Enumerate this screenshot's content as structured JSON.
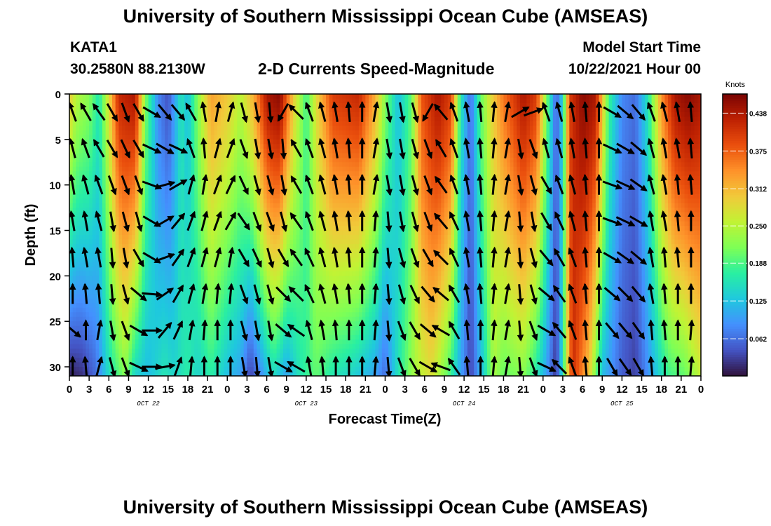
{
  "title": "University of Southern Mississippi Ocean Cube (AMSEAS)",
  "station": {
    "id": "KATA1",
    "coords": "30.2580N  88.2130W"
  },
  "subtitle": "2-D Currents Speed-Magnitude",
  "model_start": {
    "label": "Model Start Time",
    "value": "10/22/2021 Hour 00"
  },
  "footer_title": "University of Southern Mississippi Ocean Cube (AMSEAS)",
  "colors": {
    "colormap": [
      "#30123b",
      "#4454c4",
      "#4490fe",
      "#1fc8de",
      "#29efa2",
      "#7dff56",
      "#c1f334",
      "#f1ca3a",
      "#fe922a",
      "#ea4f0d",
      "#be2102",
      "#7a0403"
    ]
  },
  "chart_data": {
    "type": "heatmap",
    "xlabel": "Forecast Time(Z)",
    "ylabel": "Depth (ft)",
    "x_range_hours": [
      0,
      96
    ],
    "ylim": [
      0,
      31
    ],
    "y_ticks": [
      "0",
      "5",
      "10",
      "15",
      "20",
      "25",
      "30"
    ],
    "x_tick_labels": [
      "0",
      "3",
      "6",
      "9",
      "12",
      "15",
      "18",
      "21",
      "0",
      "3",
      "6",
      "9",
      "12",
      "15",
      "18",
      "21",
      "0",
      "3",
      "6",
      "9",
      "12",
      "15",
      "18",
      "21",
      "0",
      "3",
      "6",
      "9",
      "12",
      "15",
      "18",
      "21",
      "0"
    ],
    "day_labels": [
      {
        "label": "OCT 22",
        "hour": 12
      },
      {
        "label": "OCT 23",
        "hour": 36
      },
      {
        "label": "OCT 24",
        "hour": 60
      },
      {
        "label": "OCT 25",
        "hour": 84
      }
    ],
    "colorbar": {
      "unit": "Knots",
      "min": 0.0,
      "max": 0.47,
      "ticks": [
        "0.438",
        "0.375",
        "0.312",
        "0.250",
        "0.188",
        "0.125",
        "0.062"
      ]
    },
    "surface_speed_knots": [
      {
        "hour": 0,
        "v": 0.3
      },
      {
        "hour": 1,
        "v": 0.25
      },
      {
        "hour": 3,
        "v": 0.22
      },
      {
        "hour": 4.5,
        "v": 0.16
      },
      {
        "hour": 6,
        "v": 0.28
      },
      {
        "hour": 7.5,
        "v": 0.42
      },
      {
        "hour": 10,
        "v": 0.44
      },
      {
        "hour": 11.5,
        "v": 0.22
      },
      {
        "hour": 13.5,
        "v": 0.08
      },
      {
        "hour": 15,
        "v": 0.04
      },
      {
        "hour": 17,
        "v": 0.16
      },
      {
        "hour": 18,
        "v": 0.12
      },
      {
        "hour": 19.5,
        "v": 0.22
      },
      {
        "hour": 21.5,
        "v": 0.33
      },
      {
        "hour": 24,
        "v": 0.3
      },
      {
        "hour": 26,
        "v": 0.25
      },
      {
        "hour": 28,
        "v": 0.32
      },
      {
        "hour": 30,
        "v": 0.44
      },
      {
        "hour": 32,
        "v": 0.46
      },
      {
        "hour": 34,
        "v": 0.3
      },
      {
        "hour": 36,
        "v": 0.18
      },
      {
        "hour": 37.5,
        "v": 0.28
      },
      {
        "hour": 40,
        "v": 0.4
      },
      {
        "hour": 44,
        "v": 0.42
      },
      {
        "hour": 46.5,
        "v": 0.32
      },
      {
        "hour": 48,
        "v": 0.22
      },
      {
        "hour": 50,
        "v": 0.12
      },
      {
        "hour": 52,
        "v": 0.2
      },
      {
        "hour": 53.5,
        "v": 0.38
      },
      {
        "hour": 56,
        "v": 0.44
      },
      {
        "hour": 58,
        "v": 0.4
      },
      {
        "hour": 59.5,
        "v": 0.16
      },
      {
        "hour": 61,
        "v": 0.06
      },
      {
        "hour": 62.5,
        "v": 0.2
      },
      {
        "hour": 64,
        "v": 0.28
      },
      {
        "hour": 66,
        "v": 0.36
      },
      {
        "hour": 69,
        "v": 0.44
      },
      {
        "hour": 71,
        "v": 0.4
      },
      {
        "hour": 72.5,
        "v": 0.22
      },
      {
        "hour": 74,
        "v": 0.05
      },
      {
        "hour": 75,
        "v": 0.14
      },
      {
        "hour": 76,
        "v": 0.4
      },
      {
        "hour": 78,
        "v": 0.46
      },
      {
        "hour": 80,
        "v": 0.44
      },
      {
        "hour": 82,
        "v": 0.18
      },
      {
        "hour": 84,
        "v": 0.08
      },
      {
        "hour": 86,
        "v": 0.06
      },
      {
        "hour": 88,
        "v": 0.16
      },
      {
        "hour": 90,
        "v": 0.34
      },
      {
        "hour": 92,
        "v": 0.44
      },
      {
        "hour": 94,
        "v": 0.46
      },
      {
        "hour": 96,
        "v": 0.44
      }
    ],
    "deep_speed_knots": [
      {
        "hour": 0,
        "v": 0.01
      },
      {
        "hour": 2,
        "v": 0.02
      },
      {
        "hour": 4,
        "v": 0.06
      },
      {
        "hour": 6,
        "v": 0.15
      },
      {
        "hour": 8.5,
        "v": 0.22
      },
      {
        "hour": 10,
        "v": 0.14
      },
      {
        "hour": 12,
        "v": 0.12
      },
      {
        "hour": 14.5,
        "v": 0.16
      },
      {
        "hour": 16,
        "v": 0.14
      },
      {
        "hour": 18,
        "v": 0.17
      },
      {
        "hour": 19.5,
        "v": 0.14
      },
      {
        "hour": 21.5,
        "v": 0.17
      },
      {
        "hour": 24,
        "v": 0.12
      },
      {
        "hour": 26,
        "v": 0.1
      },
      {
        "hour": 27.5,
        "v": 0.03
      },
      {
        "hour": 29,
        "v": 0.08
      },
      {
        "hour": 31,
        "v": 0.15
      },
      {
        "hour": 33,
        "v": 0.1
      },
      {
        "hour": 35,
        "v": 0.16
      },
      {
        "hour": 37.5,
        "v": 0.2
      },
      {
        "hour": 40,
        "v": 0.16
      },
      {
        "hour": 43,
        "v": 0.14
      },
      {
        "hour": 46.5,
        "v": 0.1
      },
      {
        "hour": 48,
        "v": 0.06
      },
      {
        "hour": 50,
        "v": 0.16
      },
      {
        "hour": 52.5,
        "v": 0.24
      },
      {
        "hour": 55,
        "v": 0.28
      },
      {
        "hour": 57.5,
        "v": 0.2
      },
      {
        "hour": 59.5,
        "v": 0.1
      },
      {
        "hour": 61,
        "v": 0.03
      },
      {
        "hour": 63,
        "v": 0.14
      },
      {
        "hour": 64.5,
        "v": 0.24
      },
      {
        "hour": 66,
        "v": 0.2
      },
      {
        "hour": 69,
        "v": 0.22
      },
      {
        "hour": 71,
        "v": 0.16
      },
      {
        "hour": 72.5,
        "v": 0.1
      },
      {
        "hour": 74,
        "v": 0.02
      },
      {
        "hour": 75,
        "v": 0.16
      },
      {
        "hour": 76.5,
        "v": 0.42
      },
      {
        "hour": 79,
        "v": 0.3
      },
      {
        "hour": 81,
        "v": 0.12
      },
      {
        "hour": 84,
        "v": 0.05
      },
      {
        "hour": 86,
        "v": 0.03
      },
      {
        "hour": 89,
        "v": 0.12
      },
      {
        "hour": 91,
        "v": 0.18
      },
      {
        "hour": 93.5,
        "v": 0.2
      },
      {
        "hour": 96,
        "v": 0.26
      }
    ],
    "vectors": {
      "depth_rows_ft": [
        2,
        6,
        10,
        14,
        18,
        22,
        26,
        30
      ],
      "columns": [
        {
          "hour": 0.5,
          "dirs": [
            -20,
            -15,
            -10,
            -10,
            -5,
            0,
            130,
            0
          ]
        },
        {
          "hour": 2.5,
          "dirs": [
            -30,
            -20,
            -15,
            -10,
            -10,
            -5,
            0,
            -5
          ]
        },
        {
          "hour": 4.5,
          "dirs": [
            -35,
            -30,
            -20,
            -15,
            -10,
            -5,
            10,
            15
          ]
        },
        {
          "hour": 6.5,
          "dirs": [
            150,
            150,
            160,
            170,
            175,
            175,
            170,
            165
          ]
        },
        {
          "hour": 8.5,
          "dirs": [
            160,
            155,
            160,
            165,
            170,
            165,
            160,
            160
          ]
        },
        {
          "hour": 10.5,
          "dirs": [
            150,
            150,
            160,
            165,
            150,
            130,
            120,
            115
          ]
        },
        {
          "hour": 12.5,
          "dirs": [
            120,
            115,
            110,
            120,
            120,
            95,
            90,
            90
          ]
        },
        {
          "hour": 14.5,
          "dirs": [
            140,
            120,
            75,
            60,
            70,
            55,
            40,
            80
          ]
        },
        {
          "hour": 16.5,
          "dirs": [
            140,
            115,
            60,
            40,
            35,
            30,
            25,
            20
          ]
        },
        {
          "hour": 18.5,
          "dirs": [
            -30,
            -20,
            15,
            20,
            20,
            15,
            10,
            5
          ]
        },
        {
          "hour": 20.5,
          "dirs": [
            -10,
            -5,
            10,
            15,
            15,
            10,
            5,
            0
          ]
        },
        {
          "hour": 22.5,
          "dirs": [
            10,
            15,
            20,
            20,
            15,
            5,
            0,
            0
          ]
        },
        {
          "hour": 24.5,
          "dirs": [
            15,
            20,
            25,
            30,
            10,
            5,
            0,
            0
          ]
        },
        {
          "hour": 26.5,
          "dirs": [
            165,
            160,
            155,
            145,
            150,
            160,
            165,
            170
          ]
        },
        {
          "hour": 28.5,
          "dirs": [
            170,
            170,
            165,
            160,
            155,
            165,
            170,
            175
          ]
        },
        {
          "hour": 30.5,
          "dirs": [
            175,
            170,
            165,
            160,
            165,
            165,
            170,
            170
          ]
        },
        {
          "hour": 32.5,
          "dirs": [
            -150,
            175,
            170,
            165,
            150,
            135,
            130,
            120
          ]
        },
        {
          "hour": 34.5,
          "dirs": [
            -45,
            -30,
            -30,
            -35,
            -35,
            -45,
            -55,
            -60
          ]
        },
        {
          "hour": 36.5,
          "dirs": [
            -20,
            -20,
            -20,
            -20,
            -25,
            -25,
            -15,
            -10
          ]
        },
        {
          "hour": 38.5,
          "dirs": [
            -15,
            -15,
            -15,
            -15,
            -15,
            -15,
            -10,
            -5
          ]
        },
        {
          "hour": 40.5,
          "dirs": [
            -10,
            -10,
            -10,
            -10,
            -10,
            -10,
            -5,
            0
          ]
        },
        {
          "hour": 42.5,
          "dirs": [
            -5,
            -5,
            -5,
            -5,
            -5,
            -5,
            0,
            0
          ]
        },
        {
          "hour": 44.5,
          "dirs": [
            0,
            0,
            0,
            0,
            0,
            0,
            0,
            0
          ]
        },
        {
          "hour": 46.5,
          "dirs": [
            10,
            10,
            10,
            5,
            5,
            5,
            5,
            5
          ]
        },
        {
          "hour": 48.5,
          "dirs": [
            170,
            170,
            170,
            175,
            175,
            175,
            175,
            175
          ]
        },
        {
          "hour": 50.5,
          "dirs": [
            170,
            170,
            170,
            170,
            165,
            165,
            160,
            160
          ]
        },
        {
          "hour": 52.5,
          "dirs": [
            165,
            165,
            165,
            165,
            160,
            155,
            150,
            150
          ]
        },
        {
          "hour": 54.5,
          "dirs": [
            -150,
            160,
            160,
            160,
            150,
            140,
            130,
            120
          ]
        },
        {
          "hour": 56.5,
          "dirs": [
            -40,
            -30,
            -35,
            -40,
            -45,
            -50,
            -60,
            -70
          ]
        },
        {
          "hour": 58.5,
          "dirs": [
            -20,
            -20,
            -20,
            -25,
            -25,
            -30,
            -30,
            -35
          ]
        },
        {
          "hour": 60.5,
          "dirs": [
            -10,
            -10,
            -10,
            -10,
            -10,
            -10,
            -5,
            -5
          ]
        },
        {
          "hour": 62.5,
          "dirs": [
            -5,
            -5,
            -5,
            -5,
            -5,
            -5,
            0,
            0
          ]
        },
        {
          "hour": 64.5,
          "dirs": [
            5,
            5,
            5,
            5,
            5,
            5,
            5,
            5
          ]
        },
        {
          "hour": 66.5,
          "dirs": [
            10,
            10,
            10,
            10,
            10,
            10,
            10,
            10
          ]
        },
        {
          "hour": 68.5,
          "dirs": [
            60,
            170,
            170,
            175,
            175,
            175,
            175,
            175
          ]
        },
        {
          "hour": 70.5,
          "dirs": [
            70,
            160,
            165,
            170,
            165,
            165,
            160,
            160
          ]
        },
        {
          "hour": 72.5,
          "dirs": [
            -20,
            -15,
            150,
            150,
            140,
            130,
            120,
            115
          ]
        },
        {
          "hour": 74.5,
          "dirs": [
            -15,
            -15,
            -20,
            -25,
            -30,
            -35,
            -40,
            -45
          ]
        },
        {
          "hour": 76.5,
          "dirs": [
            -10,
            -10,
            -15,
            -15,
            -20,
            -20,
            -20,
            -20
          ]
        },
        {
          "hour": 78.5,
          "dirs": [
            -5,
            -5,
            -5,
            -5,
            -5,
            -5,
            -5,
            -5
          ]
        },
        {
          "hour": 80.5,
          "dirs": [
            0,
            0,
            0,
            0,
            0,
            0,
            0,
            0
          ]
        },
        {
          "hour": 82.5,
          "dirs": [
            120,
            115,
            110,
            110,
            120,
            130,
            140,
            150
          ]
        },
        {
          "hour": 84.5,
          "dirs": [
            130,
            120,
            115,
            115,
            125,
            135,
            140,
            145
          ]
        },
        {
          "hour": 86.5,
          "dirs": [
            140,
            130,
            125,
            120,
            130,
            140,
            145,
            150
          ]
        },
        {
          "hour": 88.5,
          "dirs": [
            -20,
            -15,
            -15,
            -10,
            -10,
            -10,
            -5,
            -5
          ]
        },
        {
          "hour": 90.5,
          "dirs": [
            -15,
            -10,
            -10,
            -10,
            -5,
            -5,
            -5,
            0
          ]
        },
        {
          "hour": 92.5,
          "dirs": [
            -10,
            -10,
            -5,
            -5,
            -5,
            0,
            0,
            0
          ]
        },
        {
          "hour": 94.5,
          "dirs": [
            -5,
            -5,
            -5,
            0,
            0,
            0,
            5,
            5
          ]
        }
      ]
    }
  }
}
